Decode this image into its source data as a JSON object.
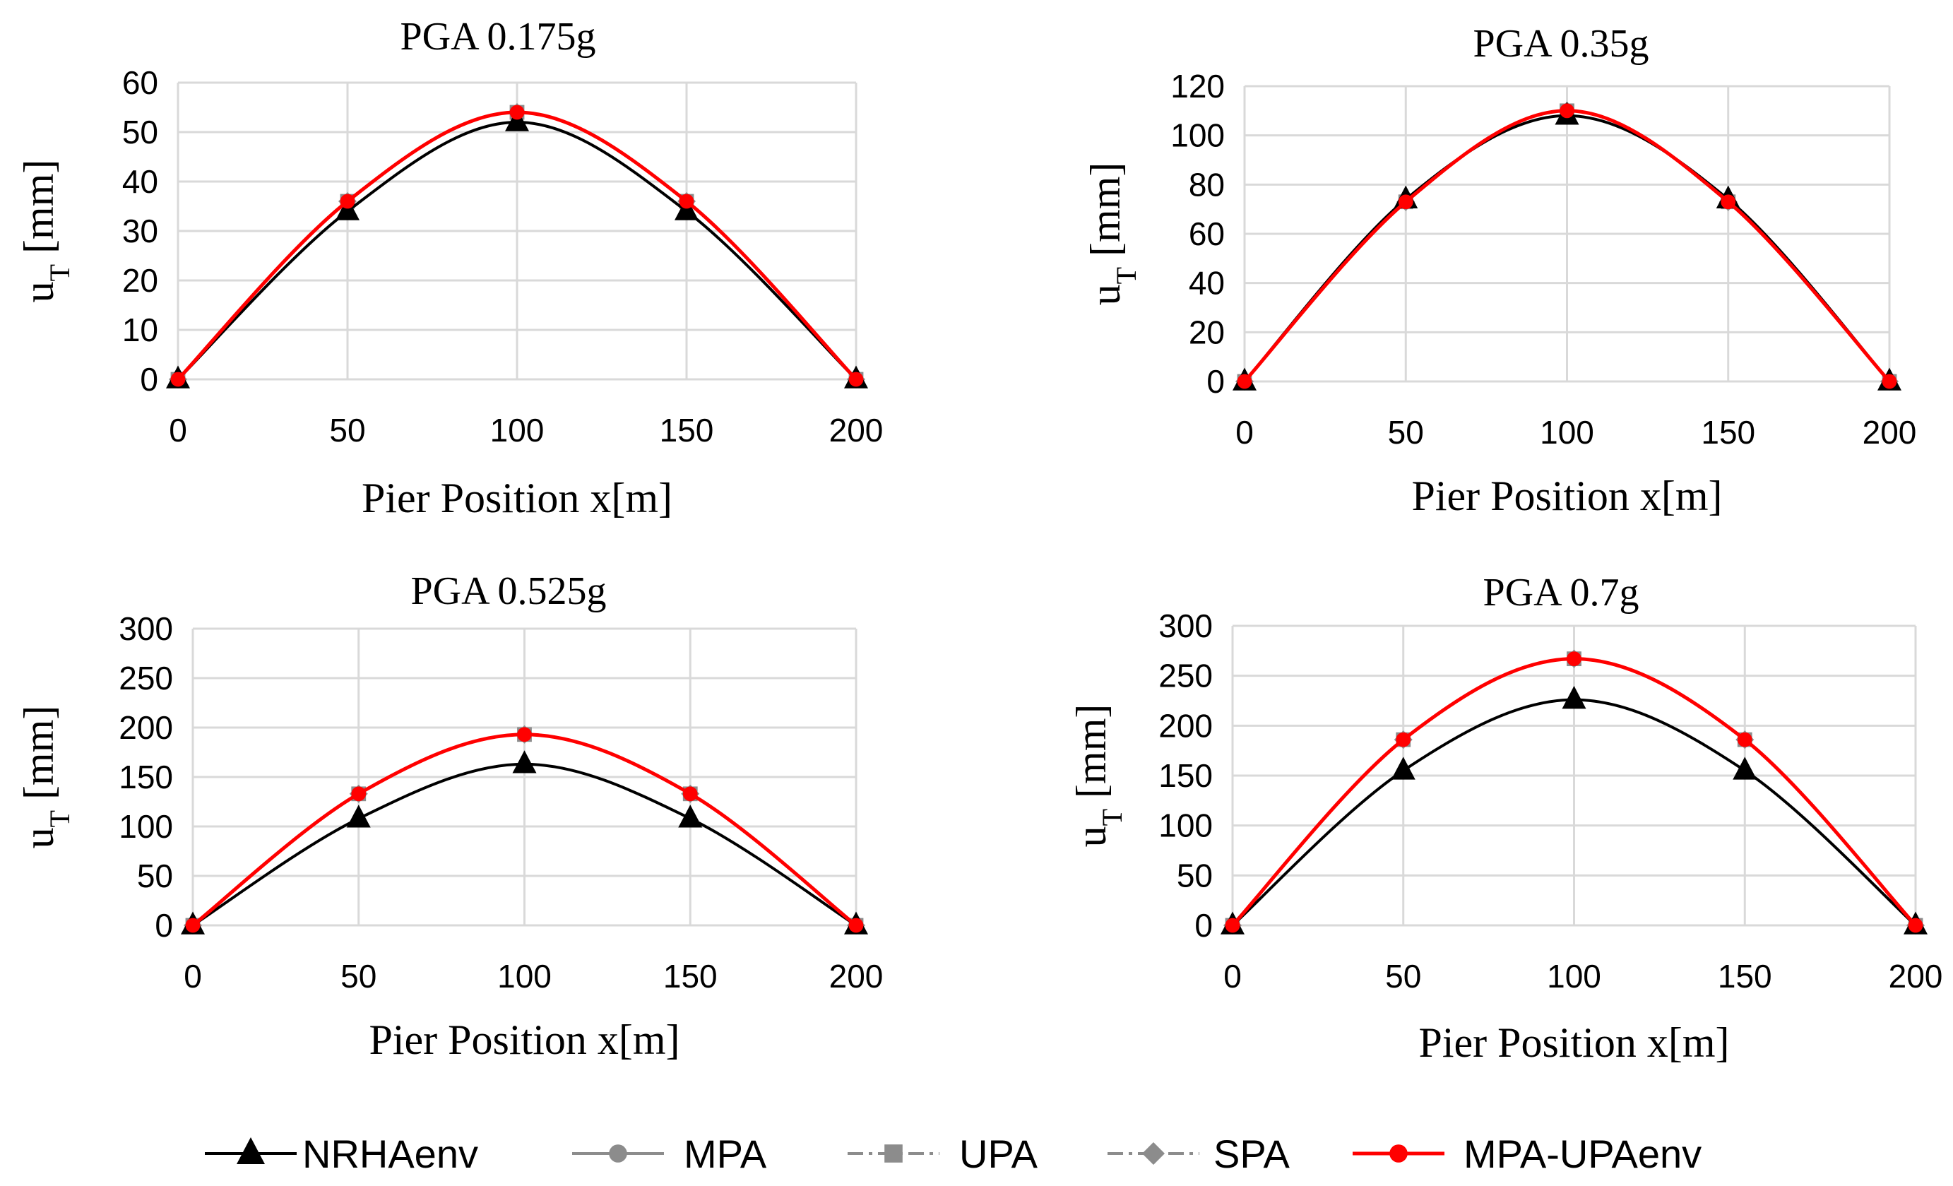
{
  "figure": {
    "series_styles": [
      {
        "name": "NRHAenv",
        "color": "#000000",
        "marker": "triangle",
        "dash": "solid"
      },
      {
        "name": "MPA",
        "color": "#8c8c8c",
        "marker": "circle",
        "dash": "solid"
      },
      {
        "name": "UPA",
        "color": "#8c8c8c",
        "marker": "square",
        "dash": "dashdot"
      },
      {
        "name": "SPA",
        "color": "#8c8c8c",
        "marker": "diamond",
        "dash": "dashdot"
      },
      {
        "name": "MPA-UPAenv",
        "color": "#ff0000",
        "marker": "circle",
        "dash": "solid"
      }
    ]
  },
  "chart_data": [
    {
      "type": "line",
      "title": "PGA 0.175g",
      "xlabel": "Pier Position x[m]",
      "ylabel_main": "u",
      "ylabel_sub": "T",
      "ylabel_unit": "[mm]",
      "xlim": [
        0,
        200
      ],
      "xticks": [
        0,
        50,
        100,
        150,
        200
      ],
      "ylim": [
        0,
        60
      ],
      "yticks": [
        0,
        10,
        20,
        30,
        40,
        50,
        60
      ],
      "x": [
        0,
        50,
        100,
        150,
        200
      ],
      "series": [
        {
          "name": "NRHAenv",
          "values": [
            0,
            34,
            52,
            34,
            0
          ]
        },
        {
          "name": "MPA",
          "values": [
            0,
            36,
            54,
            36,
            0
          ]
        },
        {
          "name": "UPA",
          "values": [
            0,
            36,
            54,
            36,
            0
          ]
        },
        {
          "name": "SPA",
          "values": [
            0,
            36,
            54,
            36,
            0
          ]
        },
        {
          "name": "MPA-UPAenv",
          "values": [
            0,
            36,
            54,
            36,
            0
          ]
        }
      ]
    },
    {
      "type": "line",
      "title": "PGA 0.35g",
      "xlabel": "Pier Position x[m]",
      "ylabel_main": "u",
      "ylabel_sub": "T",
      "ylabel_unit": "[mm]",
      "xlim": [
        0,
        200
      ],
      "xticks": [
        0,
        50,
        100,
        150,
        200
      ],
      "ylim": [
        0,
        120
      ],
      "yticks": [
        0,
        20,
        40,
        60,
        80,
        100,
        120
      ],
      "x": [
        0,
        50,
        100,
        150,
        200
      ],
      "series": [
        {
          "name": "NRHAenv",
          "values": [
            0,
            74,
            108,
            74,
            0
          ]
        },
        {
          "name": "MPA",
          "values": [
            0,
            73,
            110,
            73,
            0
          ]
        },
        {
          "name": "UPA",
          "values": [
            0,
            73,
            110,
            73,
            0
          ]
        },
        {
          "name": "SPA",
          "values": [
            0,
            73,
            110,
            73,
            0
          ]
        },
        {
          "name": "MPA-UPAenv",
          "values": [
            0,
            73,
            110,
            73,
            0
          ]
        }
      ]
    },
    {
      "type": "line",
      "title": "PGA 0.525g",
      "xlabel": "Pier Position x[m]",
      "ylabel_main": "u",
      "ylabel_sub": "T",
      "ylabel_unit": "[mm]",
      "xlim": [
        0,
        200
      ],
      "xticks": [
        0,
        50,
        100,
        150,
        200
      ],
      "ylim": [
        0,
        300
      ],
      "yticks": [
        0,
        50,
        100,
        150,
        200,
        250,
        300
      ],
      "x": [
        0,
        50,
        100,
        150,
        200
      ],
      "series": [
        {
          "name": "NRHAenv",
          "values": [
            0,
            108,
            163,
            108,
            0
          ]
        },
        {
          "name": "MPA",
          "values": [
            0,
            133,
            193,
            133,
            0
          ]
        },
        {
          "name": "UPA",
          "values": [
            0,
            133,
            193,
            133,
            0
          ]
        },
        {
          "name": "SPA",
          "values": [
            0,
            133,
            193,
            133,
            0
          ]
        },
        {
          "name": "MPA-UPAenv",
          "values": [
            0,
            133,
            193,
            133,
            0
          ]
        }
      ]
    },
    {
      "type": "line",
      "title": "PGA 0.7g",
      "xlabel": "Pier Position x[m]",
      "ylabel_main": "u",
      "ylabel_sub": "T",
      "ylabel_unit": "[mm]",
      "xlim": [
        0,
        200
      ],
      "xticks": [
        0,
        50,
        100,
        150,
        200
      ],
      "ylim": [
        0,
        300
      ],
      "yticks": [
        0,
        50,
        100,
        150,
        200,
        250,
        300
      ],
      "x": [
        0,
        50,
        100,
        150,
        200
      ],
      "series": [
        {
          "name": "NRHAenv",
          "values": [
            0,
            155,
            226,
            155,
            0
          ]
        },
        {
          "name": "MPA",
          "values": [
            0,
            186,
            267,
            186,
            0
          ]
        },
        {
          "name": "UPA",
          "values": [
            0,
            186,
            267,
            186,
            0
          ]
        },
        {
          "name": "SPA",
          "values": [
            0,
            186,
            267,
            186,
            0
          ]
        },
        {
          "name": "MPA-UPAenv",
          "values": [
            0,
            186,
            267,
            186,
            0
          ]
        }
      ]
    }
  ]
}
